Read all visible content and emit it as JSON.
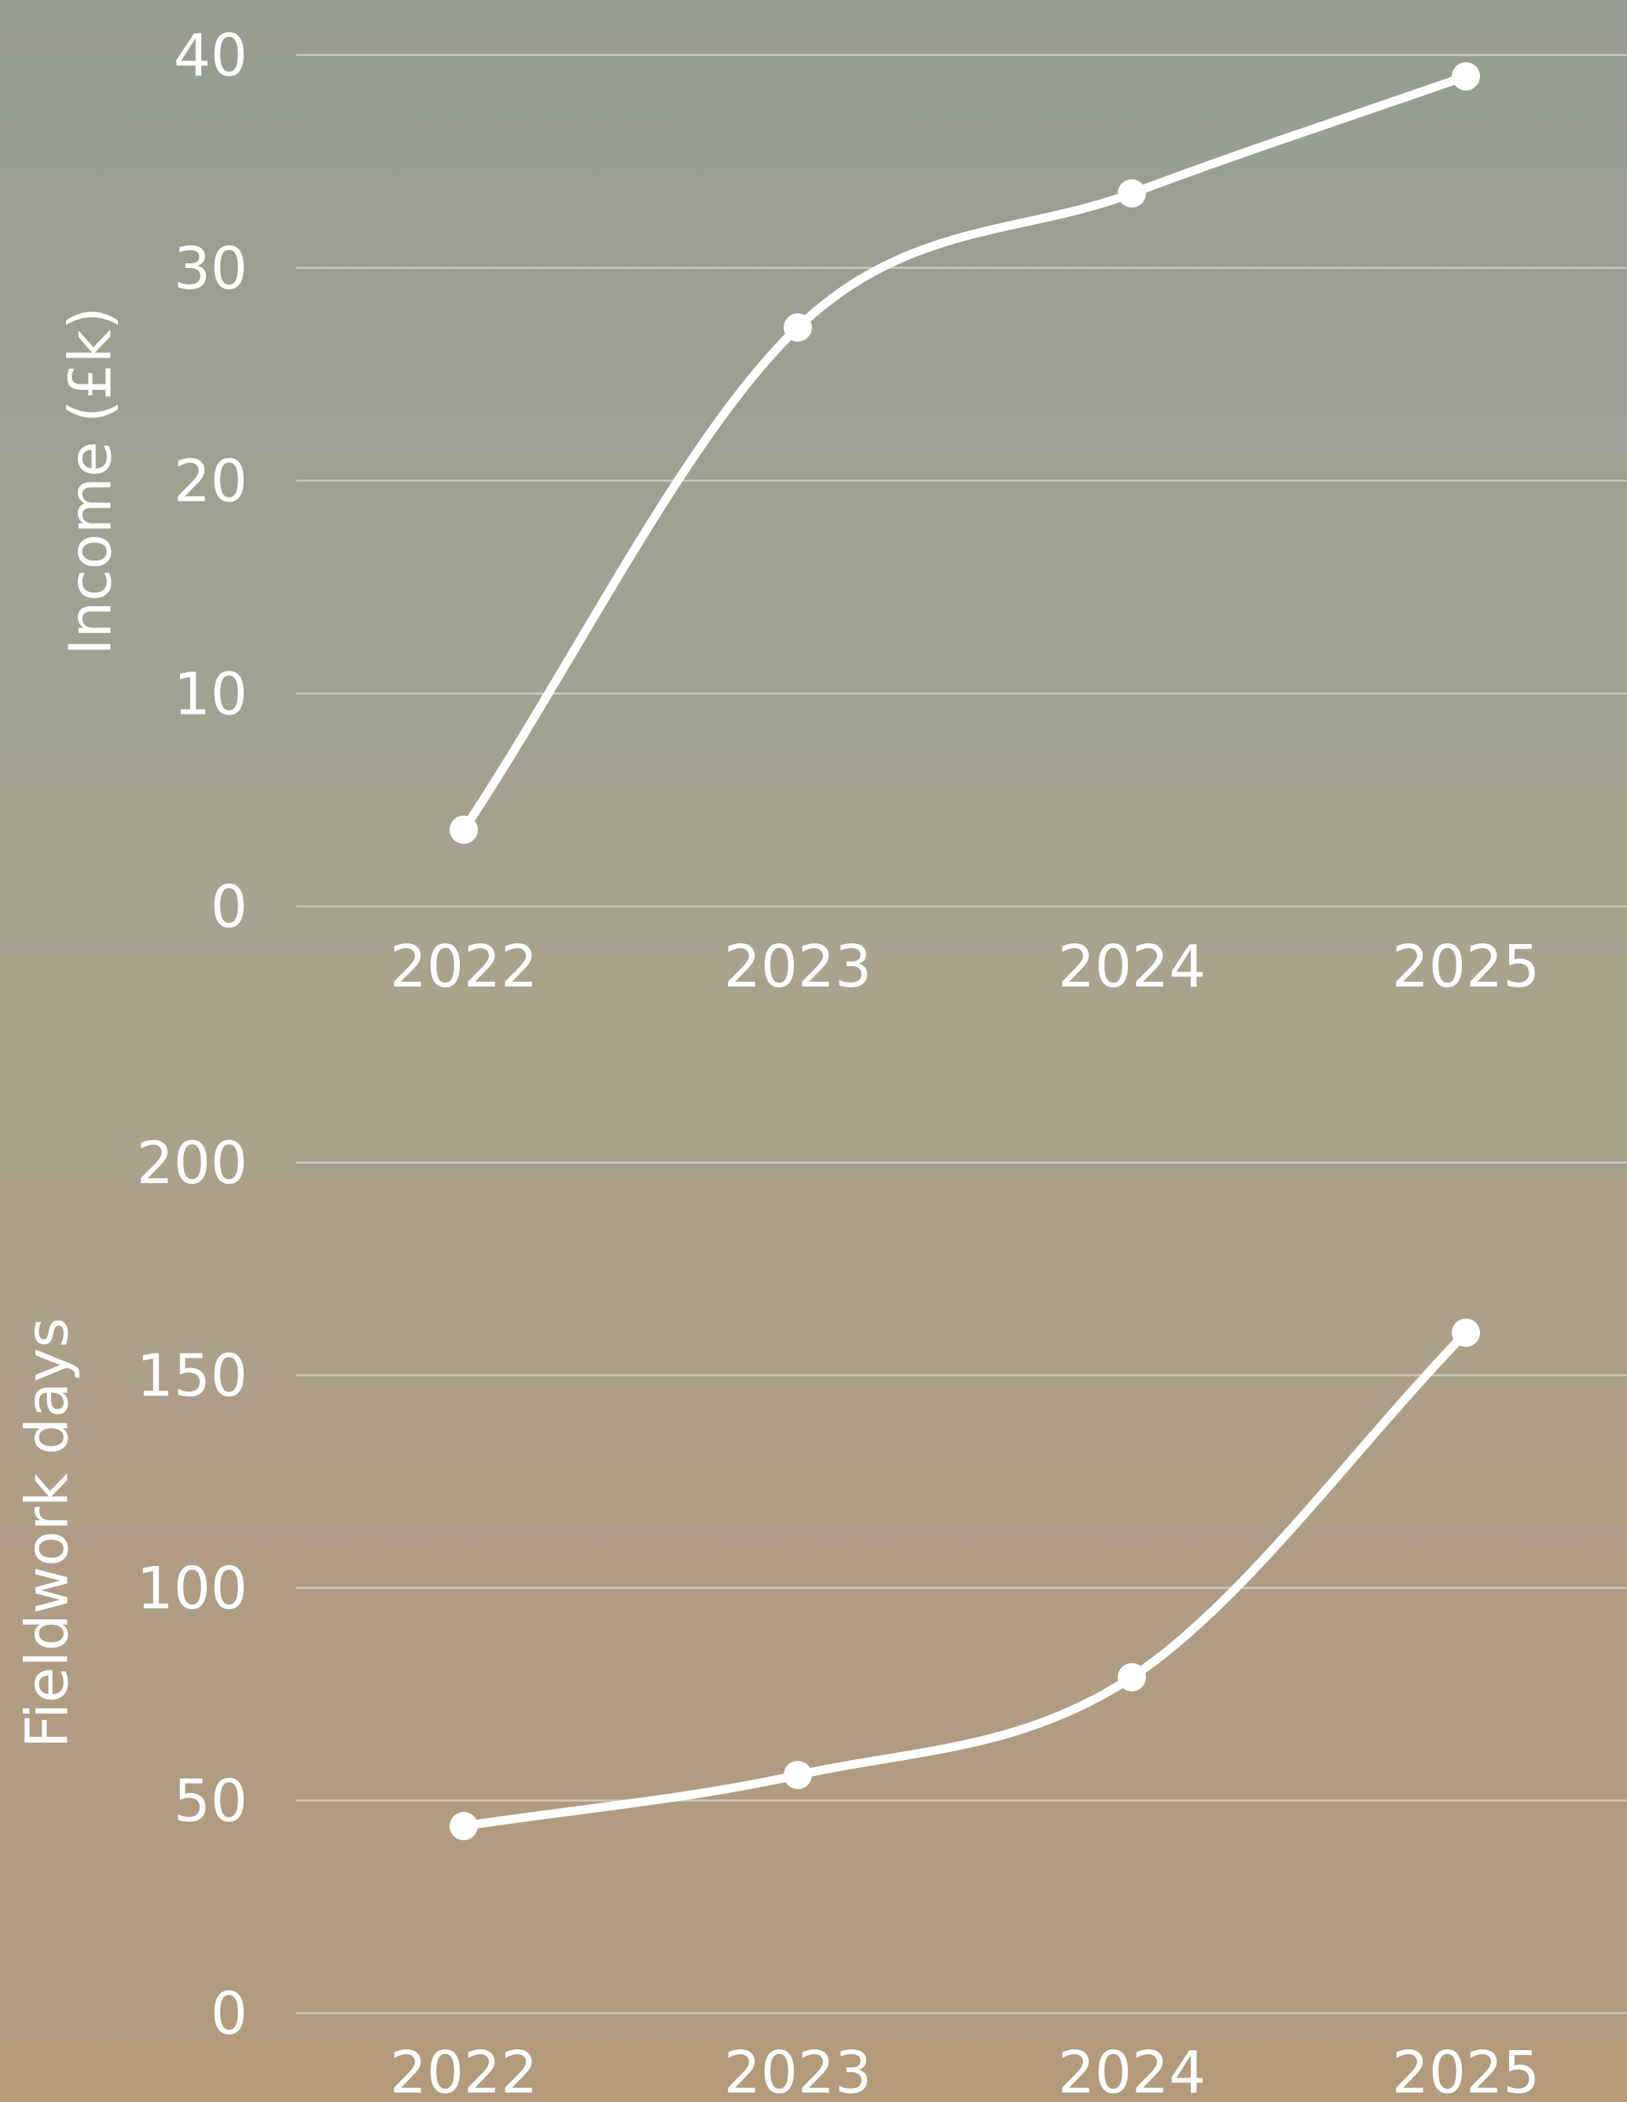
{
  "chart_data": [
    {
      "type": "line",
      "categories": [
        "2022",
        "2023",
        "2024",
        "2025"
      ],
      "values": [
        3.6,
        27.2,
        33.5,
        39
      ],
      "ylabel": "Income (£k)",
      "yticks": [
        "0",
        "10",
        "20",
        "30",
        "40"
      ],
      "ylim": [
        0,
        40
      ],
      "grid": true,
      "line_color": "#ffffff"
    },
    {
      "type": "line",
      "categories": [
        "2022",
        "2023",
        "2024",
        "2025"
      ],
      "values": [
        44,
        56,
        79,
        160
      ],
      "ylabel": "Fieldwork days",
      "yticks": [
        "0",
        "50",
        "100",
        "150",
        "200"
      ],
      "ylim": [
        0,
        200
      ],
      "grid": true,
      "line_color": "#ffffff"
    }
  ]
}
